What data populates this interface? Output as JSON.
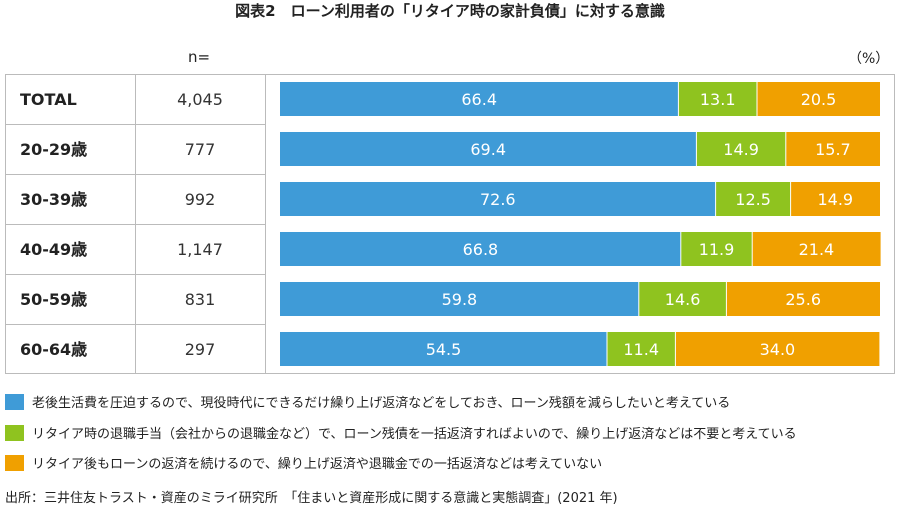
{
  "chart_data": {
    "type": "bar",
    "orientation": "horizontal",
    "stacked": true,
    "title": "図表2　ローン利用者の「リタイア時の家計負債」に対する意識",
    "unit_label": "（%）",
    "n_header": "n=",
    "categories": [
      "TOTAL",
      "20-29歳",
      "30-39歳",
      "40-49歳",
      "50-59歳",
      "60-64歳"
    ],
    "n_values": [
      "4,045",
      "777",
      "992",
      "1,147",
      "831",
      "297"
    ],
    "series": [
      {
        "name": "老後生活費を圧迫するので、現役時代にできるだけ繰り上げ返済などをしておき、ローン残額を減らしたいと考えている",
        "color": "#3f9bd7",
        "values": [
          66.4,
          69.4,
          72.6,
          66.8,
          59.8,
          54.5
        ],
        "labels": [
          "66.4",
          "69.4",
          "72.6",
          "66.8",
          "59.8",
          "54.5"
        ]
      },
      {
        "name": "リタイア時の退職手当（会社からの退職金など）で、ローン残債を一括返済すればよいので、繰り上げ返済などは不要と考えている",
        "color": "#8fc31f",
        "values": [
          13.1,
          14.9,
          12.5,
          11.9,
          14.6,
          11.4
        ],
        "labels": [
          "13.1",
          "14.9",
          "12.5",
          "11.9",
          "14.6",
          "11.4"
        ]
      },
      {
        "name": "リタイア後もローンの返済を続けるので、繰り上げ返済や退職金での一括返済などは考えていない",
        "color": "#f0a000",
        "values": [
          20.5,
          15.7,
          14.9,
          21.4,
          25.6,
          34.0
        ],
        "labels": [
          "20.5",
          "15.7",
          "14.9",
          "21.4",
          "25.6",
          "34.0"
        ]
      }
    ],
    "xlim": [
      0,
      100
    ]
  },
  "source": "出所：三井住友トラスト・資産のミライ研究所　「住まいと資産形成に関する意識と実態調査」(2021 年)"
}
